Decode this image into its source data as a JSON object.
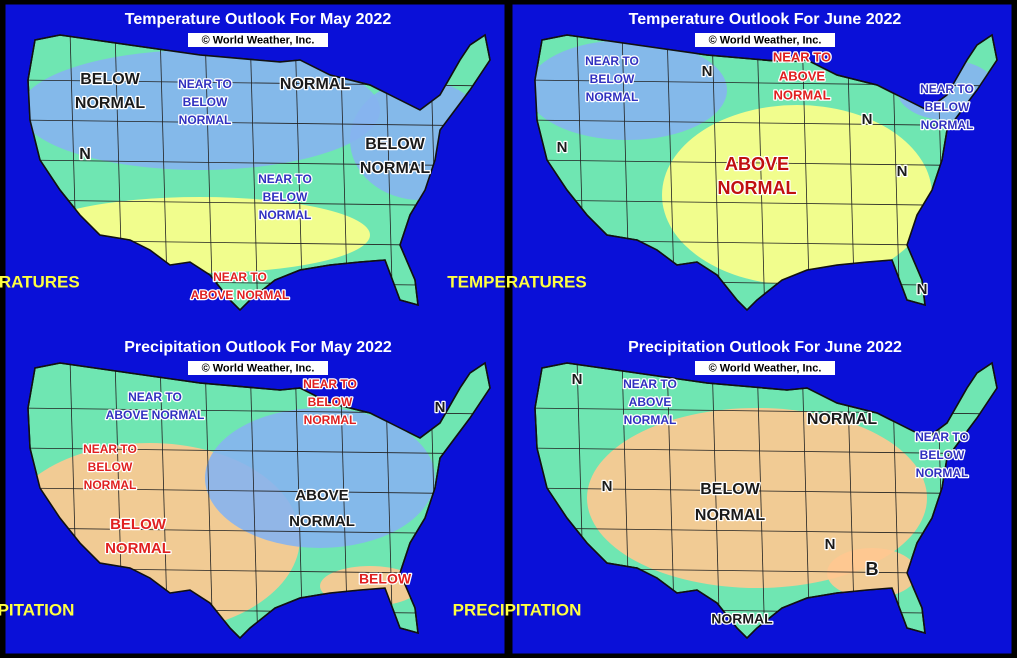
{
  "panels": [
    {
      "title": "Temperature Outlook For May 2022",
      "credit": "© World Weather, Inc.",
      "corner_label": "TEMPERATURES",
      "labels": [
        {
          "lines": [
            "BELOW",
            "NORMAL"
          ],
          "color": "#1a1a1a"
        },
        {
          "lines": [
            "NEAR TO",
            "BELOW",
            "NORMAL"
          ],
          "color": "#3030c0"
        },
        {
          "lines": [
            "NORMAL"
          ],
          "color": "#1a1a1a"
        },
        {
          "lines": [
            "N"
          ],
          "color": "#1a1a1a"
        },
        {
          "lines": [
            "BELOW",
            "NORMAL"
          ],
          "color": "#1a1a1a"
        },
        {
          "lines": [
            "NEAR TO",
            "BELOW",
            "NORMAL"
          ],
          "color": "#3030c0"
        },
        {
          "lines": [
            "NEAR TO",
            "ABOVE NORMAL"
          ],
          "color": "#e02020"
        }
      ]
    },
    {
      "title": "Temperature Outlook For June 2022",
      "credit": "© World Weather, Inc.",
      "corner_label": "TEMPERATURES",
      "labels": [
        {
          "lines": [
            "NEAR TO",
            "BELOW",
            "NORMAL"
          ],
          "color": "#3030c0"
        },
        {
          "lines": [
            "N"
          ],
          "color": "#1a1a1a"
        },
        {
          "lines": [
            "NEAR TO",
            "ABOVE",
            "NORMAL"
          ],
          "color": "#e02020"
        },
        {
          "lines": [
            "NEAR TO",
            "BELOW",
            "NORMAL"
          ],
          "color": "#3030c0"
        },
        {
          "lines": [
            "N"
          ],
          "color": "#1a1a1a"
        },
        {
          "lines": [
            "N"
          ],
          "color": "#1a1a1a"
        },
        {
          "lines": [
            "ABOVE",
            "NORMAL"
          ],
          "color": "#c01010"
        },
        {
          "lines": [
            "N"
          ],
          "color": "#1a1a1a"
        },
        {
          "lines": [
            "N"
          ],
          "color": "#1a1a1a"
        }
      ]
    },
    {
      "title": "Precipitation Outlook For May 2022",
      "credit": "© World Weather, Inc.",
      "corner_label": "PRECIPITATION",
      "labels": [
        {
          "lines": [
            "NEAR TO",
            "ABOVE NORMAL"
          ],
          "color": "#3030c0"
        },
        {
          "lines": [
            "NEAR TO",
            "BELOW",
            "NORMAL"
          ],
          "color": "#e02020"
        },
        {
          "lines": [
            "N"
          ],
          "color": "#1a1a1a"
        },
        {
          "lines": [
            "NEAR TO",
            "BELOW",
            "NORMAL"
          ],
          "color": "#e02020"
        },
        {
          "lines": [
            "ABOVE",
            "NORMAL"
          ],
          "color": "#1a1a1a"
        },
        {
          "lines": [
            "BELOW",
            "NORMAL"
          ],
          "color": "#e02020"
        },
        {
          "lines": [
            "BELOW"
          ],
          "color": "#e02020"
        }
      ]
    },
    {
      "title": "Precipitation Outlook For June 2022",
      "credit": "© World Weather, Inc.",
      "corner_label": "PRECIPITATION",
      "labels": [
        {
          "lines": [
            "N"
          ],
          "color": "#1a1a1a"
        },
        {
          "lines": [
            "NEAR TO",
            "ABOVE",
            "NORMAL"
          ],
          "color": "#3030c0"
        },
        {
          "lines": [
            "NORMAL"
          ],
          "color": "#1a1a1a"
        },
        {
          "lines": [
            "NEAR TO",
            "BELOW",
            "NORMAL"
          ],
          "color": "#3030c0"
        },
        {
          "lines": [
            "N"
          ],
          "color": "#1a1a1a"
        },
        {
          "lines": [
            "BELOW",
            "NORMAL"
          ],
          "color": "#1a1a1a"
        },
        {
          "lines": [
            "N"
          ],
          "color": "#1a1a1a"
        },
        {
          "lines": [
            "B"
          ],
          "color": "#1a1a1a"
        },
        {
          "lines": [
            "NORMAL"
          ],
          "color": "#1a1a1a"
        }
      ]
    }
  ]
}
